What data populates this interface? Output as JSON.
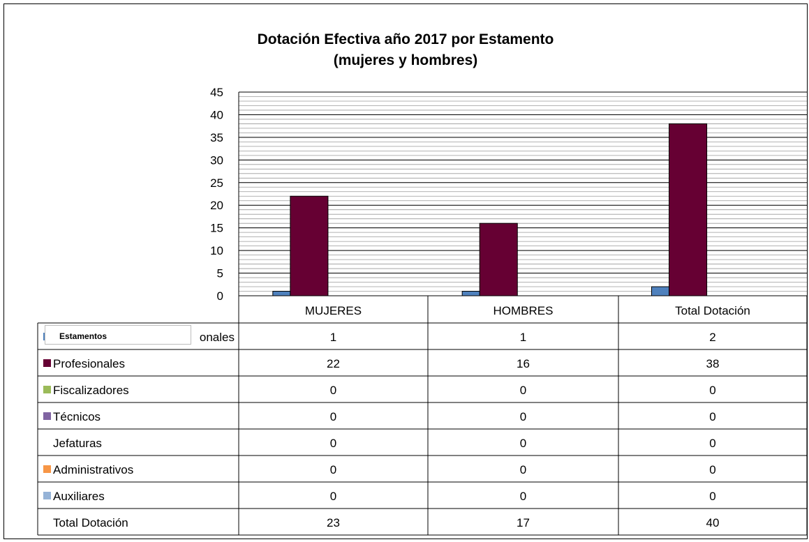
{
  "chart_data": {
    "type": "bar",
    "title_line1": "Dotación Efectiva año 2017 por Estamento",
    "title_line2": "(mujeres y hombres)",
    "categories": [
      "MUJERES",
      "HOMBRES",
      "Total Dotación"
    ],
    "ylim": [
      0,
      45
    ],
    "yticks": [
      0,
      5,
      10,
      15,
      20,
      25,
      30,
      35,
      40,
      45
    ],
    "grid": true,
    "legend_title": "Estamentos",
    "series": [
      {
        "name": "Directivos profesionales",
        "label_visible": "onales",
        "color": "#4f81bd",
        "values": [
          1,
          1,
          2
        ]
      },
      {
        "name": "Profesionales",
        "label_visible": "Profesionales",
        "color": "#660033",
        "values": [
          22,
          16,
          38
        ]
      },
      {
        "name": "Fiscalizadores",
        "label_visible": "Fiscalizadores",
        "color": "#9bbb59",
        "values": [
          0,
          0,
          0
        ]
      },
      {
        "name": "Técnicos",
        "label_visible": "Técnicos",
        "color": "#8064a2",
        "values": [
          0,
          0,
          0
        ]
      },
      {
        "name": "Jefaturas",
        "label_visible": "Jefaturas",
        "color": "",
        "values": [
          0,
          0,
          0
        ]
      },
      {
        "name": "Administrativos",
        "label_visible": "Administrativos",
        "color": "#f79646",
        "values": [
          0,
          0,
          0
        ]
      },
      {
        "name": "Auxiliares",
        "label_visible": "Auxiliares",
        "color": "#95b3d7",
        "values": [
          0,
          0,
          0
        ]
      }
    ],
    "total_row": {
      "label": "Total Dotación",
      "values": [
        23,
        17,
        40
      ]
    }
  }
}
